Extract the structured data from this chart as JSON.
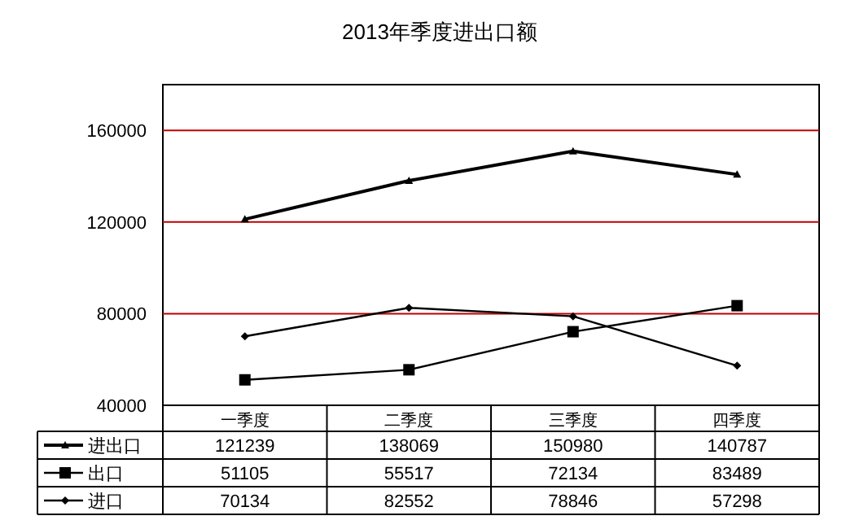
{
  "chart_data": {
    "type": "line",
    "title": "2013年季度进出口额",
    "categories": [
      "一季度",
      "二季度",
      "三季度",
      "四季度"
    ],
    "series": [
      {
        "name": "进出口",
        "color": "#000000",
        "marker": "triangle",
        "values": [
          121239,
          138069,
          150980,
          140787
        ]
      },
      {
        "name": "出口",
        "color": "#000000",
        "marker": "square",
        "values": [
          51105,
          55517,
          72134,
          83489
        ]
      },
      {
        "name": "进口",
        "color": "#000000",
        "marker": "diamond",
        "values": [
          70134,
          82552,
          78846,
          57298
        ]
      }
    ],
    "ylim": [
      40000,
      180000
    ],
    "yticks": [
      40000,
      80000,
      120000,
      160000
    ],
    "grid": "y",
    "legend": "bottom",
    "data_labels": true
  }
}
